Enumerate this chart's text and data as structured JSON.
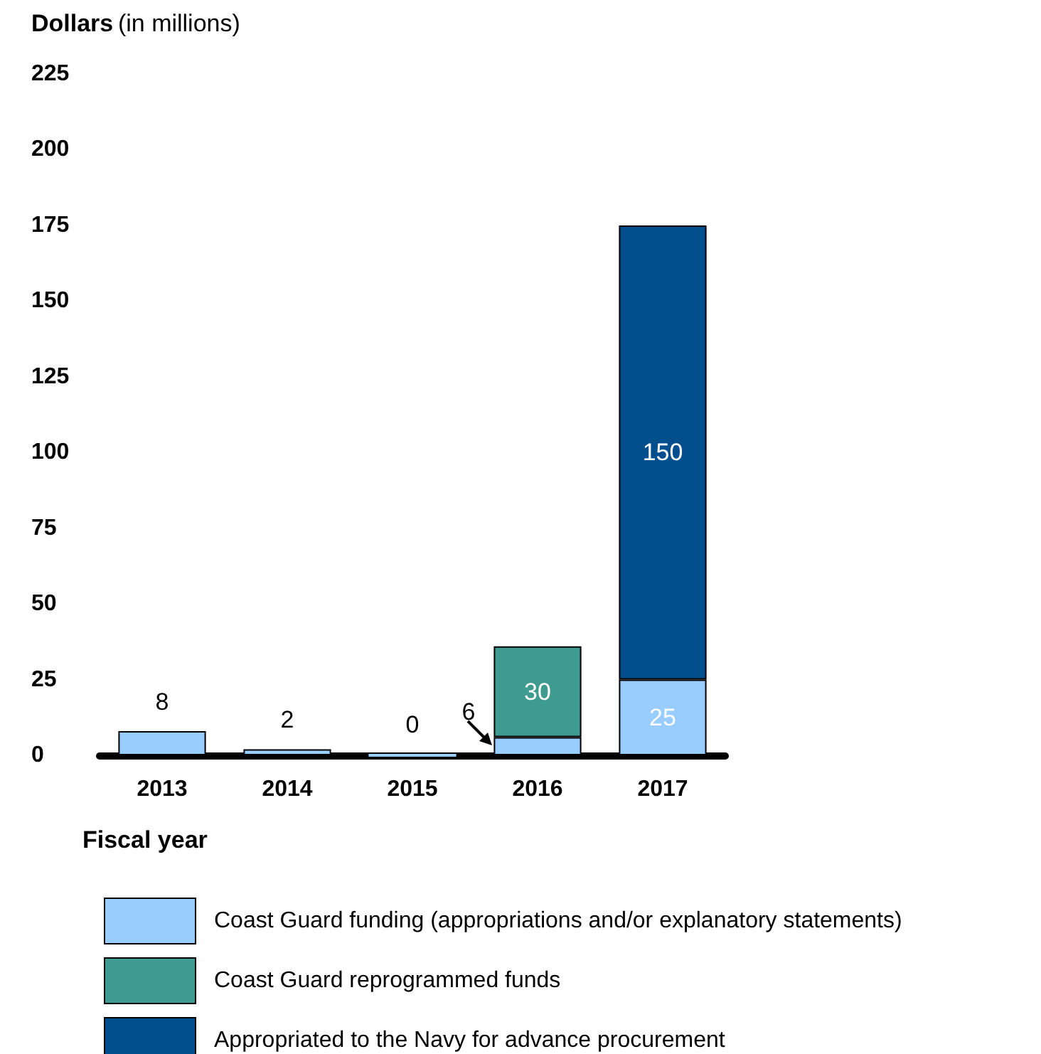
{
  "chart_data": {
    "type": "bar",
    "stacked": true,
    "categories": [
      "2013",
      "2014",
      "2015",
      "2016",
      "2017"
    ],
    "series": [
      {
        "name": "Coast Guard funding (appropriations and/or explanatory statements)",
        "color": "#99ccff",
        "values": [
          8,
          2,
          0,
          6,
          25
        ],
        "value_labels": [
          "8",
          "2",
          "0",
          "6",
          "25"
        ]
      },
      {
        "name": "Coast Guard reprogrammed funds",
        "color": "#3f9a8f",
        "values": [
          null,
          null,
          null,
          30,
          null
        ],
        "value_labels": [
          null,
          null,
          null,
          "30",
          null
        ]
      },
      {
        "name": "Appropriated to the Navy for advance procurement",
        "color": "#034f8e",
        "values": [
          null,
          null,
          null,
          null,
          150
        ],
        "value_labels": [
          null,
          null,
          null,
          null,
          "150"
        ]
      }
    ],
    "ylabel": "Dollars (in millions)",
    "xlabel": "Fiscal year",
    "ylim": [
      0,
      225
    ],
    "yticks": [
      0,
      25,
      50,
      75,
      100,
      125,
      150,
      175,
      200,
      225
    ],
    "grid": false,
    "legend": "bottom"
  }
}
